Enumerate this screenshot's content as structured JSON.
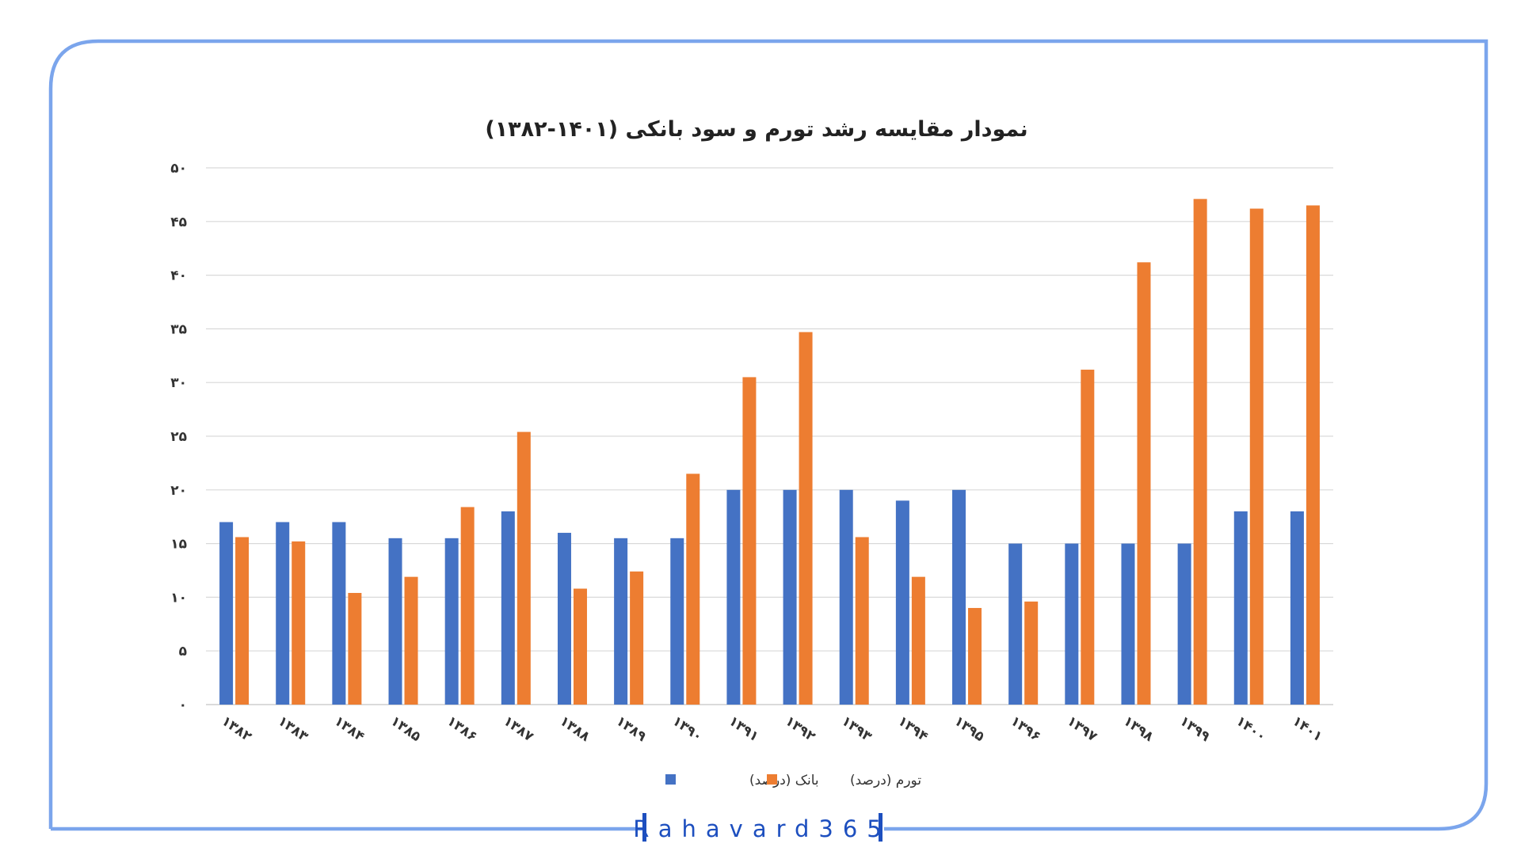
{
  "brand": {
    "watermark": "Rahavard365",
    "frame_color": "#7ba5ec",
    "watermark_color": "#1d4fbf"
  },
  "chart_data": {
    "type": "bar",
    "title": "نمودار مقایسه رشد تورم و سود بانکی (۱۴۰۱-۱۳۸۲)",
    "xlabel": "",
    "ylabel": "",
    "ylim": [
      0,
      50
    ],
    "yticks": [
      0,
      5,
      10,
      15,
      20,
      25,
      30,
      35,
      40,
      45,
      50
    ],
    "ytick_labels": [
      "۰",
      "۵",
      "۱۰",
      "۱۵",
      "۲۰",
      "۲۵",
      "۳۰",
      "۳۵",
      "۴۰",
      "۴۵",
      "۵۰"
    ],
    "grid": true,
    "legend_position": "bottom",
    "categories": [
      "۱۳۸۲",
      "۱۳۸۳",
      "۱۳۸۴",
      "۱۳۸۵",
      "۱۳۸۶",
      "۱۳۸۷",
      "۱۳۸۸",
      "۱۳۸۹",
      "۱۳۹۰",
      "۱۳۹۱",
      "۱۳۹۲",
      "۱۳۹۳",
      "۱۳۹۴",
      "۱۳۹۵",
      "۱۳۹۶",
      "۱۳۹۷",
      "۱۳۹۸",
      "۱۳۹۹",
      "۱۴۰۰",
      "۱۴۰۱"
    ],
    "series": [
      {
        "name": "بانک (درصد)",
        "color": "#4472c4",
        "values": [
          17,
          17,
          17,
          15.5,
          15.5,
          18,
          16,
          15.5,
          15.5,
          20,
          20,
          20,
          19,
          20,
          15,
          15,
          15,
          15,
          18,
          18
        ]
      },
      {
        "name": "تورم (درصد)",
        "color": "#ed7d31",
        "values": [
          15.6,
          15.2,
          10.4,
          11.9,
          18.4,
          25.4,
          10.8,
          12.4,
          21.5,
          30.5,
          34.7,
          15.6,
          11.9,
          9,
          9.6,
          31.2,
          41.2,
          47.1,
          46.2,
          46.5
        ]
      }
    ]
  }
}
